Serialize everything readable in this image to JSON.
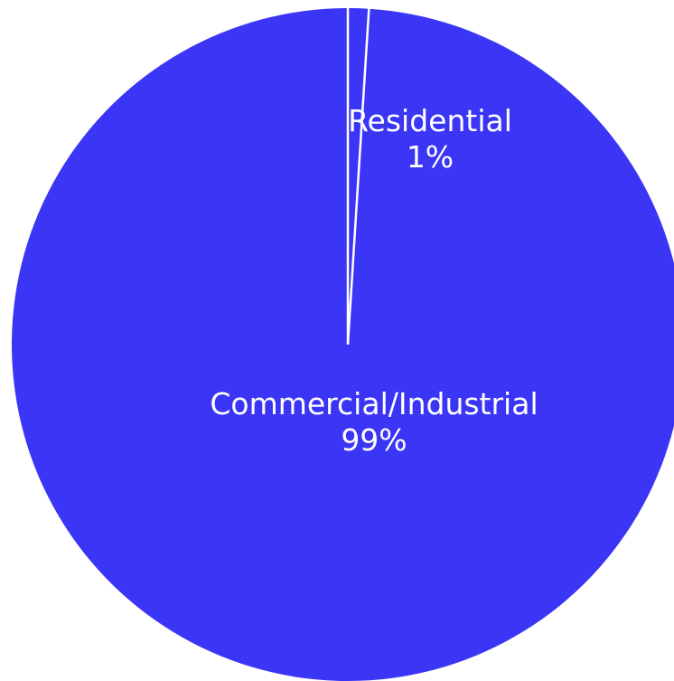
{
  "chart_data": {
    "type": "pie",
    "title": "",
    "categories": [
      "Residential",
      "Commercial/Industrial"
    ],
    "values": [
      1,
      99
    ],
    "value_labels": [
      "1%",
      "99%"
    ],
    "colors": [
      "#3b35f5",
      "#3b35f5"
    ],
    "separator_color": "#ffffff",
    "start_angle_deg": 0,
    "direction": "clockwise",
    "legend": "none"
  }
}
